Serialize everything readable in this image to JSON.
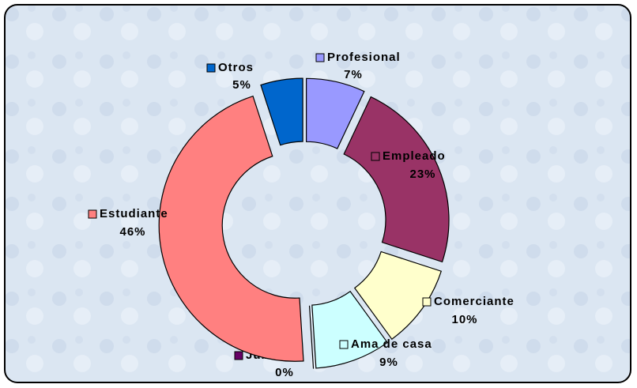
{
  "chart_data": {
    "type": "pie",
    "donut": true,
    "exploded": true,
    "categories": [
      "Profesional",
      "Empleado",
      "Comerciante",
      "Ama de casa",
      "Jubilado",
      "Estudiante",
      "Otros"
    ],
    "values": [
      7,
      23,
      10,
      9,
      0,
      46,
      5
    ],
    "value_labels": [
      "7%",
      "23%",
      "10%",
      "9%",
      "0%",
      "46%",
      "5%"
    ],
    "colors": [
      "#9999ff",
      "#993366",
      "#ffffcc",
      "#ccffff",
      "#660066",
      "#ff8080",
      "#0066cc"
    ]
  }
}
